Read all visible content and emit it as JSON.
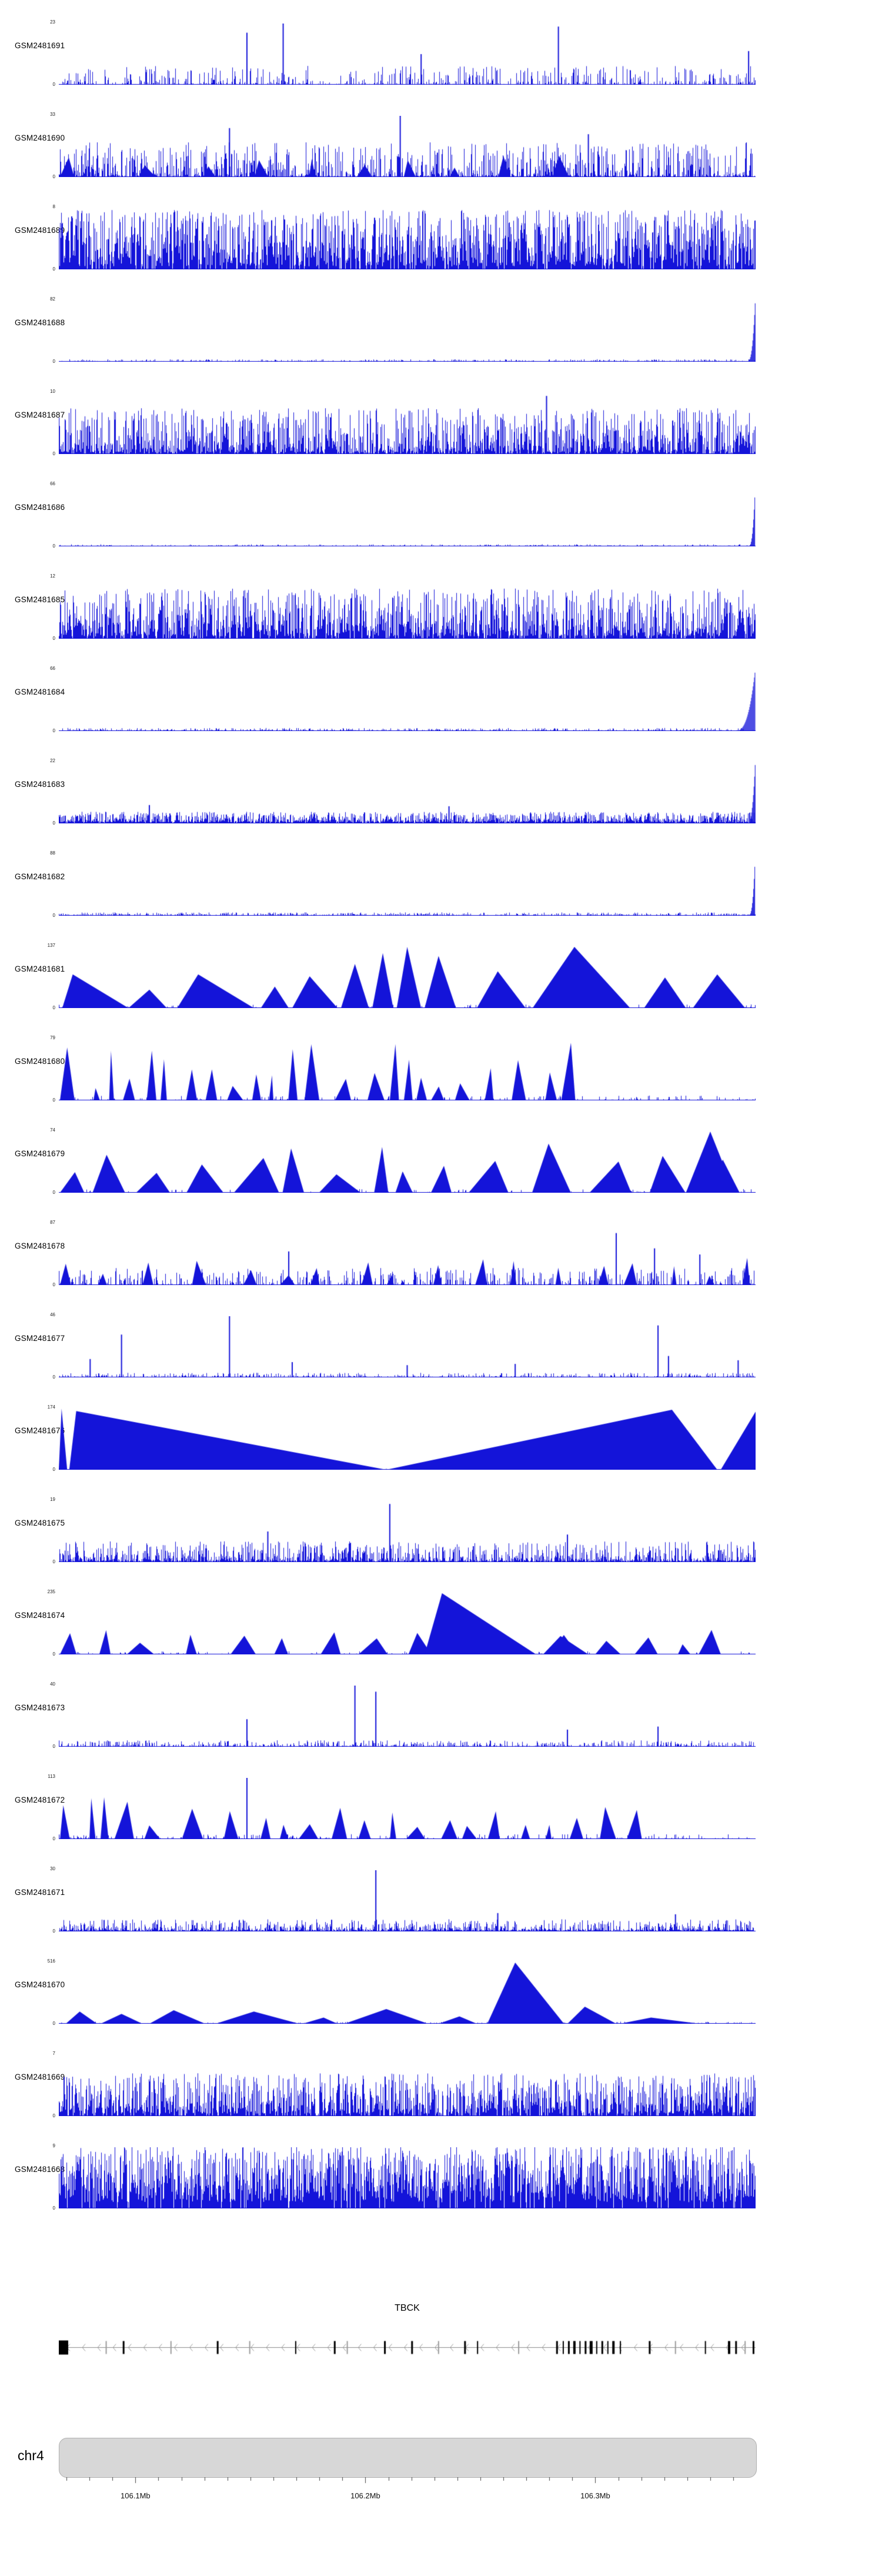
{
  "colors": {
    "signal": "#1414d9",
    "ideogram_fill": "#d7d7d7",
    "ideogram_border": "#b0b0b0",
    "gene_line": "#8a8a8a",
    "chevron": "#9a9a9a",
    "exon_black": "#000000",
    "exon_gray": "#9b9b9b",
    "tick": "#444444"
  },
  "chart_data": {
    "type": "area",
    "description": "Genome-browser read-coverage figure: 24 blue signal tracks (GSM samples) over the TBCK gene locus on chr4 (~106.05-106.35 Mb). Each track has its own y-axis from 0 to the shown maximum.",
    "region": {
      "chromosome": "chr4",
      "ticks": [
        {
          "label": "106.1Mb",
          "f": 0.11
        },
        {
          "label": "106.2Mb",
          "f": 0.44
        },
        {
          "label": "106.3Mb",
          "f": 0.77
        }
      ],
      "minor_tick_step": 0.033,
      "minor_tick_start": 0.011
    },
    "gene": {
      "name": "TBCK",
      "strand": "minus",
      "arrow_spacing": 0.022,
      "exons": [
        [
          0.0,
          16,
          0,
          24
        ],
        [
          0.068,
          2,
          1
        ],
        [
          0.093,
          3,
          0
        ],
        [
          0.161,
          2,
          1
        ],
        [
          0.228,
          3,
          0
        ],
        [
          0.274,
          2,
          1
        ],
        [
          0.34,
          2,
          0
        ],
        [
          0.396,
          3,
          0
        ],
        [
          0.414,
          2,
          1
        ],
        [
          0.468,
          3,
          0
        ],
        [
          0.507,
          3,
          0
        ],
        [
          0.545,
          2,
          1
        ],
        [
          0.583,
          3,
          0
        ],
        [
          0.601,
          2,
          0
        ],
        [
          0.66,
          2,
          1
        ],
        [
          0.715,
          3,
          0
        ],
        [
          0.724,
          2,
          0
        ],
        [
          0.732,
          3,
          0
        ],
        [
          0.74,
          4,
          0
        ],
        [
          0.748,
          2,
          0
        ],
        [
          0.756,
          3,
          0
        ],
        [
          0.764,
          5,
          0
        ],
        [
          0.772,
          2,
          0
        ],
        [
          0.78,
          3,
          0
        ],
        [
          0.788,
          2,
          0
        ],
        [
          0.796,
          4,
          0
        ],
        [
          0.806,
          2,
          0
        ],
        [
          0.848,
          3,
          0
        ],
        [
          0.885,
          2,
          1
        ],
        [
          0.928,
          2,
          0
        ],
        [
          0.962,
          4,
          0
        ],
        [
          0.972,
          3,
          0
        ],
        [
          0.985,
          2,
          1
        ],
        [
          0.997,
          3,
          0
        ]
      ]
    },
    "tracks": [
      {
        "label": "GSM2481691",
        "ymax": "23",
        "ymin": "0",
        "seed": 11,
        "params": {
          "density": 0.5,
          "pow": 3.2,
          "hMax": 0.3,
          "base": 0.01
        },
        "spikes": [
          [
            0.27,
            0.85
          ],
          [
            0.322,
            1.0
          ],
          [
            0.52,
            0.5
          ],
          [
            0.717,
            0.95
          ],
          [
            0.99,
            0.55
          ]
        ]
      },
      {
        "label": "GSM2481690",
        "ymax": "33",
        "ymin": "0",
        "seed": 22,
        "params": {
          "density": 0.65,
          "pow": 2.2,
          "hMax": 0.55,
          "base": 0.02,
          "triCount": 10,
          "triWMin": 0.008,
          "triWMax": 0.025,
          "triHMin": 0.15,
          "triHMax": 0.35,
          "gapMin": 0.04,
          "gapMax": 0.1
        },
        "spikes": [
          [
            0.245,
            0.8
          ],
          [
            0.49,
            1.0
          ],
          [
            0.76,
            0.7
          ]
        ]
      },
      {
        "label": "GSM2481689",
        "ymax": "8",
        "ymin": "0",
        "seed": 33,
        "params": {
          "density": 0.93,
          "pow": 1.3,
          "hMax": 0.92,
          "base": 0.05
        }
      },
      {
        "label": "GSM2481688",
        "ymax": "82",
        "ymin": "0",
        "seed": 44,
        "params": {
          "density": 0.6,
          "pow": 3,
          "hMax": 0.035,
          "base": 0.005,
          "rightSpike": 1,
          "rightW": 0.012
        }
      },
      {
        "label": "GSM2481687",
        "ymax": "10",
        "ymin": "0",
        "seed": 55,
        "params": {
          "density": 0.88,
          "pow": 1.8,
          "hMax": 0.72,
          "base": 0.03
        },
        "spikes": [
          [
            0.7,
            0.95
          ]
        ]
      },
      {
        "label": "GSM2481686",
        "ymax": "66",
        "ymin": "0",
        "seed": 66,
        "params": {
          "density": 0.6,
          "pow": 3,
          "hMax": 0.03,
          "base": 0.004,
          "rightSpike": 1,
          "rightW": 0.01
        }
      },
      {
        "label": "GSM2481685",
        "ymax": "12",
        "ymin": "0",
        "seed": 77,
        "params": {
          "density": 0.9,
          "pow": 1.7,
          "hMax": 0.78,
          "base": 0.04
        }
      },
      {
        "label": "GSM2481684",
        "ymax": "66",
        "ymin": "0",
        "seed": 88,
        "params": {
          "density": 0.65,
          "pow": 3,
          "hMax": 0.045,
          "base": 0.005,
          "rightSpike": 1,
          "rightW": 0.03
        }
      },
      {
        "label": "GSM2481683",
        "ymax": "22",
        "ymin": "0",
        "seed": 99,
        "params": {
          "density": 0.92,
          "pow": 1.8,
          "hMax": 0.17,
          "base": 0.02,
          "rightSpike": 1,
          "rightW": 0.012
        },
        "spikes": [
          [
            0.13,
            0.3
          ],
          [
            0.56,
            0.28
          ]
        ]
      },
      {
        "label": "GSM2481682",
        "ymax": "88",
        "ymin": "0",
        "seed": 110,
        "params": {
          "density": 0.8,
          "pow": 2.5,
          "hMax": 0.05,
          "base": 0.004,
          "rightSpike": 1,
          "rightW": 0.01
        }
      },
      {
        "label": "GSM2481681",
        "ymax": "137",
        "ymin": "0",
        "seed": 121,
        "params": {
          "density": 0.3,
          "pow": 3,
          "hMax": 0.06
        },
        "triangles": [
          [
            0.005,
            0.02,
            0.1,
            0.55
          ],
          [
            0.1,
            0.13,
            0.155,
            0.3
          ],
          [
            0.17,
            0.2,
            0.28,
            0.55
          ],
          [
            0.29,
            0.31,
            0.33,
            0.35
          ],
          [
            0.335,
            0.36,
            0.4,
            0.52
          ],
          [
            0.405,
            0.425,
            0.445,
            0.72
          ],
          [
            0.45,
            0.465,
            0.48,
            0.9
          ],
          [
            0.485,
            0.5,
            0.52,
            1.0
          ],
          [
            0.525,
            0.545,
            0.57,
            0.85
          ],
          [
            0.6,
            0.63,
            0.67,
            0.6
          ],
          [
            0.68,
            0.74,
            0.82,
            1.0
          ],
          [
            0.84,
            0.87,
            0.9,
            0.5
          ],
          [
            0.91,
            0.945,
            0.985,
            0.55
          ]
        ]
      },
      {
        "label": "GSM2481680",
        "ymax": "79",
        "ymin": "0",
        "seed": 132,
        "params": {
          "density": 0.35,
          "pow": 3,
          "hMax": 0.08,
          "triCount": 24,
          "triWMin": 0.006,
          "triWMax": 0.03,
          "triHMin": 0.2,
          "triHMax": 0.95,
          "gapMin": 0.005,
          "gapMax": 0.03
        }
      },
      {
        "label": "GSM2481679",
        "ymax": "74",
        "ymin": "0",
        "seed": 143,
        "params": {
          "density": 0.3,
          "pow": 3,
          "hMax": 0.06,
          "triCount": 15,
          "triWMin": 0.02,
          "triWMax": 0.07,
          "triHMin": 0.3,
          "triHMax": 0.85,
          "gapMin": 0.005,
          "gapMax": 0.04
        },
        "triangles": [
          [
            0.9,
            0.935,
            0.97,
            1.0
          ]
        ]
      },
      {
        "label": "GSM2481678",
        "ymax": "87",
        "ymin": "0",
        "seed": 154,
        "params": {
          "density": 0.55,
          "pow": 2.6,
          "hMax": 0.28,
          "triCount": 18,
          "triWMin": 0.006,
          "triWMax": 0.022,
          "triHMin": 0.15,
          "triHMax": 0.45,
          "gapMin": 0.02,
          "gapMax": 0.06
        },
        "spikes": [
          [
            0.33,
            0.55
          ],
          [
            0.8,
            0.85
          ],
          [
            0.855,
            0.6
          ],
          [
            0.92,
            0.5
          ]
        ]
      },
      {
        "label": "GSM2481677",
        "ymax": "46",
        "ymin": "0",
        "seed": 165,
        "params": {
          "density": 0.65,
          "pow": 3,
          "hMax": 0.07,
          "base": 0.005
        },
        "spikes": [
          [
            0.045,
            0.3
          ],
          [
            0.09,
            0.7
          ],
          [
            0.245,
            1.0
          ],
          [
            0.335,
            0.25
          ],
          [
            0.5,
            0.2
          ],
          [
            0.655,
            0.22
          ],
          [
            0.86,
            0.85
          ],
          [
            0.875,
            0.35
          ],
          [
            0.975,
            0.28
          ]
        ]
      },
      {
        "label": "GSM2481676",
        "ymax": "174",
        "ymin": "0",
        "seed": 176,
        "params": {
          "density": 0.25,
          "pow": 3,
          "hMax": 0.04
        },
        "triangles": [
          [
            0.0,
            0.004,
            0.012,
            1.0
          ],
          [
            0.015,
            0.025,
            0.47,
            0.96
          ],
          [
            0.47,
            0.88,
            0.945,
            0.98
          ],
          [
            0.95,
            1.0,
            1.0,
            0.95
          ]
        ]
      },
      {
        "label": "GSM2481675",
        "ymax": "19",
        "ymin": "0",
        "seed": 187,
        "params": {
          "density": 0.8,
          "pow": 2.2,
          "hMax": 0.32,
          "base": 0.02
        },
        "spikes": [
          [
            0.475,
            0.95
          ],
          [
            0.3,
            0.5
          ],
          [
            0.73,
            0.45
          ]
        ]
      },
      {
        "label": "GSM2481674",
        "ymax": "235",
        "ymin": "0",
        "seed": 198,
        "params": {
          "density": 0.3,
          "pow": 3,
          "hMax": 0.05,
          "triCount": 16,
          "triWMin": 0.015,
          "triWMax": 0.045,
          "triHMin": 0.15,
          "triHMax": 0.4,
          "gapMin": 0.01,
          "gapMax": 0.05
        },
        "triangles": [
          [
            0.525,
            0.55,
            0.685,
            1.0
          ],
          [
            0.695,
            0.72,
            0.76,
            0.3
          ]
        ]
      },
      {
        "label": "GSM2481673",
        "ymax": "40",
        "ymin": "0",
        "seed": 209,
        "params": {
          "density": 0.7,
          "pow": 3,
          "hMax": 0.1,
          "base": 0.005
        },
        "spikes": [
          [
            0.27,
            0.45
          ],
          [
            0.425,
            1.0
          ],
          [
            0.455,
            0.9
          ],
          [
            0.73,
            0.28
          ],
          [
            0.86,
            0.33
          ]
        ]
      },
      {
        "label": "GSM2481672",
        "ymax": "113",
        "ymin": "0",
        "seed": 220,
        "params": {
          "density": 0.4,
          "pow": 3,
          "hMax": 0.08,
          "triCount": 22,
          "triWMin": 0.008,
          "triWMax": 0.032,
          "triHMin": 0.2,
          "triHMax": 0.7,
          "gapMin": 0.006,
          "gapMax": 0.035
        },
        "spikes": [
          [
            0.27,
            1.0
          ]
        ]
      },
      {
        "label": "GSM2481671",
        "ymax": "30",
        "ymin": "0",
        "seed": 231,
        "params": {
          "density": 0.75,
          "pow": 2.6,
          "hMax": 0.18,
          "base": 0.02
        },
        "spikes": [
          [
            0.455,
            1.0
          ],
          [
            0.63,
            0.3
          ],
          [
            0.885,
            0.28
          ]
        ]
      },
      {
        "label": "GSM2481670",
        "ymax": "516",
        "ymin": "0",
        "seed": 242,
        "params": {
          "density": 0.5,
          "pow": 3.5,
          "hMax": 0.03,
          "base": 0.004
        },
        "triangles": [
          [
            0.01,
            0.03,
            0.055,
            0.2
          ],
          [
            0.06,
            0.09,
            0.12,
            0.16
          ],
          [
            0.13,
            0.165,
            0.21,
            0.22
          ],
          [
            0.225,
            0.28,
            0.345,
            0.2
          ],
          [
            0.35,
            0.38,
            0.4,
            0.1
          ],
          [
            0.41,
            0.47,
            0.53,
            0.24
          ],
          [
            0.545,
            0.575,
            0.6,
            0.12
          ],
          [
            0.615,
            0.655,
            0.725,
            1.0
          ],
          [
            0.73,
            0.755,
            0.8,
            0.28
          ],
          [
            0.805,
            0.85,
            0.92,
            0.1
          ]
        ]
      },
      {
        "label": "GSM2481669",
        "ymax": "7",
        "ymin": "0",
        "seed": 253,
        "params": {
          "density": 0.88,
          "pow": 1.6,
          "hMax": 0.66,
          "base": 0.04
        }
      },
      {
        "label": "GSM2481668",
        "ymax": "9",
        "ymin": "0",
        "seed": 264,
        "params": {
          "density": 0.95,
          "pow": 1.2,
          "hMax": 0.93,
          "base": 0.1
        }
      }
    ]
  }
}
